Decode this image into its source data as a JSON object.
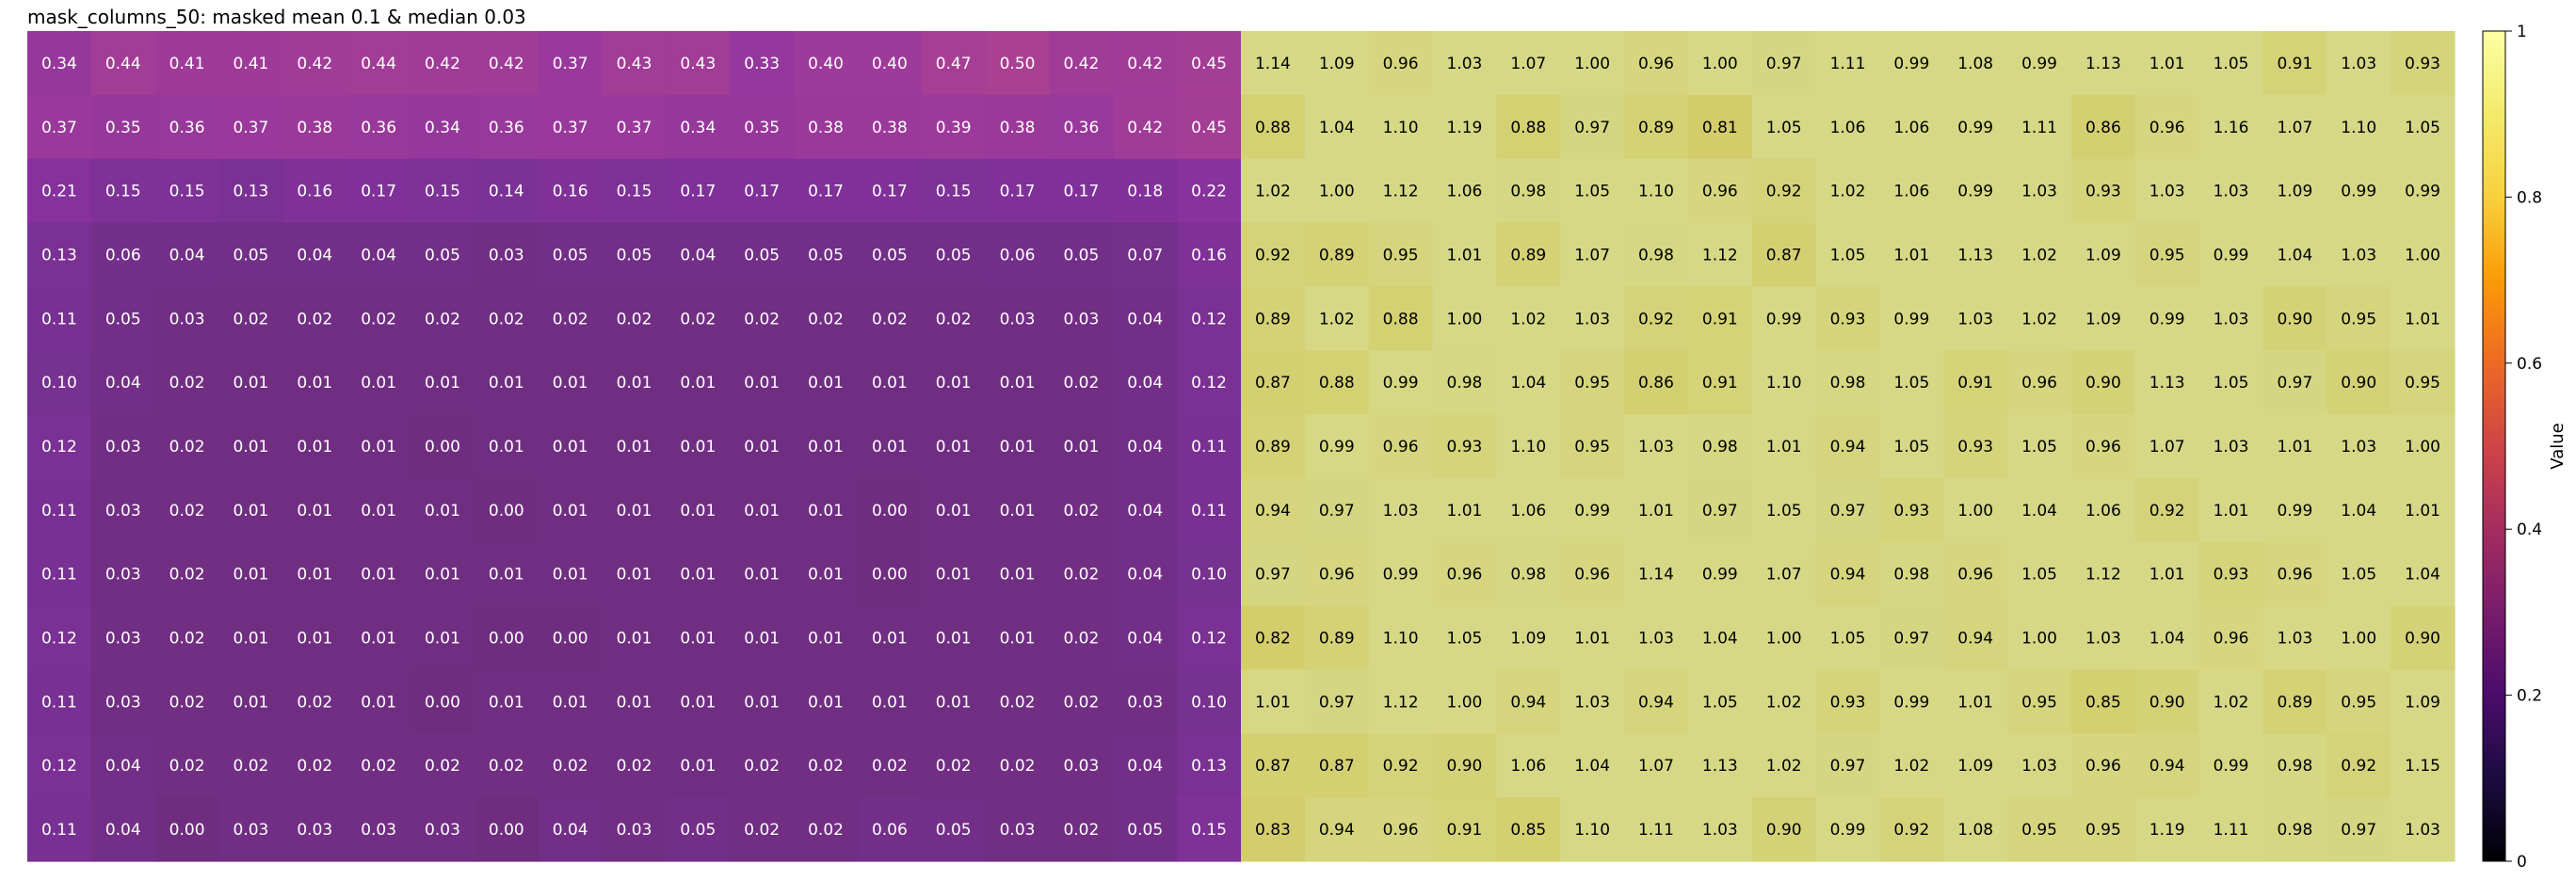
{
  "chart_data": {
    "type": "heatmap",
    "title": "mask_columns_50: masked mean 0.1 & median 0.03",
    "colormap": "inferno-like (overlay)",
    "colorbar": {
      "label": "Value",
      "range": [
        0,
        1
      ],
      "ticks": [
        "0",
        "0.2",
        "0.4",
        "0.6",
        "0.8",
        "1"
      ]
    },
    "colors": {
      "masked_column_tint": "#9b3fb0",
      "unmasked_column_tint": "#c7c97a",
      "dark_text": "#000000",
      "light_text": "#ffffff"
    },
    "masked_columns": 19,
    "rows": [
      [
        "0.34",
        "0.44",
        "0.41",
        "0.41",
        "0.42",
        "0.44",
        "0.42",
        "0.42",
        "0.37",
        "0.43",
        "0.43",
        "0.33",
        "0.40",
        "0.40",
        "0.47",
        "0.50",
        "0.42",
        "0.42",
        "0.45",
        "1.14",
        "1.09",
        "0.96",
        "1.03",
        "1.07",
        "1.00",
        "0.96",
        "1.00",
        "0.97",
        "1.11",
        "0.99",
        "1.08",
        "0.99",
        "1.13",
        "1.01",
        "1.05",
        "0.91",
        "1.03",
        "0.93"
      ],
      [
        "0.37",
        "0.35",
        "0.36",
        "0.37",
        "0.38",
        "0.36",
        "0.34",
        "0.36",
        "0.37",
        "0.37",
        "0.34",
        "0.35",
        "0.38",
        "0.38",
        "0.39",
        "0.38",
        "0.36",
        "0.42",
        "0.45",
        "0.88",
        "1.04",
        "1.10",
        "1.19",
        "0.88",
        "0.97",
        "0.89",
        "0.81",
        "1.05",
        "1.06",
        "1.06",
        "0.99",
        "1.11",
        "0.86",
        "0.96",
        "1.16",
        "1.07",
        "1.10",
        "1.05"
      ],
      [
        "0.21",
        "0.15",
        "0.15",
        "0.13",
        "0.16",
        "0.17",
        "0.15",
        "0.14",
        "0.16",
        "0.15",
        "0.17",
        "0.17",
        "0.17",
        "0.17",
        "0.15",
        "0.17",
        "0.17",
        "0.18",
        "0.22",
        "1.02",
        "1.00",
        "1.12",
        "1.06",
        "0.98",
        "1.05",
        "1.10",
        "0.96",
        "0.92",
        "1.02",
        "1.06",
        "0.99",
        "1.03",
        "0.93",
        "1.03",
        "1.03",
        "1.09",
        "0.99",
        "0.99"
      ],
      [
        "0.13",
        "0.06",
        "0.04",
        "0.05",
        "0.04",
        "0.04",
        "0.05",
        "0.03",
        "0.05",
        "0.05",
        "0.04",
        "0.05",
        "0.05",
        "0.05",
        "0.05",
        "0.06",
        "0.05",
        "0.07",
        "0.16",
        "0.92",
        "0.89",
        "0.95",
        "1.01",
        "0.89",
        "1.07",
        "0.98",
        "1.12",
        "0.87",
        "1.05",
        "1.01",
        "1.13",
        "1.02",
        "1.09",
        "0.95",
        "0.99",
        "1.04",
        "1.03",
        "1.00"
      ],
      [
        "0.11",
        "0.05",
        "0.03",
        "0.02",
        "0.02",
        "0.02",
        "0.02",
        "0.02",
        "0.02",
        "0.02",
        "0.02",
        "0.02",
        "0.02",
        "0.02",
        "0.02",
        "0.03",
        "0.03",
        "0.04",
        "0.12",
        "0.89",
        "1.02",
        "0.88",
        "1.00",
        "1.02",
        "1.03",
        "0.92",
        "0.91",
        "0.99",
        "0.93",
        "0.99",
        "1.03",
        "1.02",
        "1.09",
        "0.99",
        "1.03",
        "0.90",
        "0.95",
        "1.01"
      ],
      [
        "0.10",
        "0.04",
        "0.02",
        "0.01",
        "0.01",
        "0.01",
        "0.01",
        "0.01",
        "0.01",
        "0.01",
        "0.01",
        "0.01",
        "0.01",
        "0.01",
        "0.01",
        "0.01",
        "0.02",
        "0.04",
        "0.12",
        "0.87",
        "0.88",
        "0.99",
        "0.98",
        "1.04",
        "0.95",
        "0.86",
        "0.91",
        "1.10",
        "0.98",
        "1.05",
        "0.91",
        "0.96",
        "0.90",
        "1.13",
        "1.05",
        "0.97",
        "0.90",
        "0.95"
      ],
      [
        "0.12",
        "0.03",
        "0.02",
        "0.01",
        "0.01",
        "0.01",
        "0.00",
        "0.01",
        "0.01",
        "0.01",
        "0.01",
        "0.01",
        "0.01",
        "0.01",
        "0.01",
        "0.01",
        "0.01",
        "0.04",
        "0.11",
        "0.89",
        "0.99",
        "0.96",
        "0.93",
        "1.10",
        "0.95",
        "1.03",
        "0.98",
        "1.01",
        "0.94",
        "1.05",
        "0.93",
        "1.05",
        "0.96",
        "1.07",
        "1.03",
        "1.01",
        "1.03",
        "1.00"
      ],
      [
        "0.11",
        "0.03",
        "0.02",
        "0.01",
        "0.01",
        "0.01",
        "0.01",
        "0.00",
        "0.01",
        "0.01",
        "0.01",
        "0.01",
        "0.01",
        "0.00",
        "0.01",
        "0.01",
        "0.02",
        "0.04",
        "0.11",
        "0.94",
        "0.97",
        "1.03",
        "1.01",
        "1.06",
        "0.99",
        "1.01",
        "0.97",
        "1.05",
        "0.97",
        "0.93",
        "1.00",
        "1.04",
        "1.06",
        "0.92",
        "1.01",
        "0.99",
        "1.04",
        "1.01"
      ],
      [
        "0.11",
        "0.03",
        "0.02",
        "0.01",
        "0.01",
        "0.01",
        "0.01",
        "0.01",
        "0.01",
        "0.01",
        "0.01",
        "0.01",
        "0.01",
        "0.00",
        "0.01",
        "0.01",
        "0.02",
        "0.04",
        "0.10",
        "0.97",
        "0.96",
        "0.99",
        "0.96",
        "0.98",
        "0.96",
        "1.14",
        "0.99",
        "1.07",
        "0.94",
        "0.98",
        "0.96",
        "1.05",
        "1.12",
        "1.01",
        "0.93",
        "0.96",
        "1.05",
        "1.04"
      ],
      [
        "0.12",
        "0.03",
        "0.02",
        "0.01",
        "0.01",
        "0.01",
        "0.01",
        "0.00",
        "0.00",
        "0.01",
        "0.01",
        "0.01",
        "0.01",
        "0.01",
        "0.01",
        "0.01",
        "0.02",
        "0.04",
        "0.12",
        "0.82",
        "0.89",
        "1.10",
        "1.05",
        "1.09",
        "1.01",
        "1.03",
        "1.04",
        "1.00",
        "1.05",
        "0.97",
        "0.94",
        "1.00",
        "1.03",
        "1.04",
        "0.96",
        "1.03",
        "1.00",
        "0.90"
      ],
      [
        "0.11",
        "0.03",
        "0.02",
        "0.01",
        "0.02",
        "0.01",
        "0.00",
        "0.01",
        "0.01",
        "0.01",
        "0.01",
        "0.01",
        "0.01",
        "0.01",
        "0.01",
        "0.02",
        "0.02",
        "0.03",
        "0.10",
        "1.01",
        "0.97",
        "1.12",
        "1.00",
        "0.94",
        "1.03",
        "0.94",
        "1.05",
        "1.02",
        "0.93",
        "0.99",
        "1.01",
        "0.95",
        "0.85",
        "0.90",
        "1.02",
        "0.89",
        "0.95",
        "1.09"
      ],
      [
        "0.12",
        "0.04",
        "0.02",
        "0.02",
        "0.02",
        "0.02",
        "0.02",
        "0.02",
        "0.02",
        "0.02",
        "0.01",
        "0.02",
        "0.02",
        "0.02",
        "0.02",
        "0.02",
        "0.03",
        "0.04",
        "0.13",
        "0.87",
        "0.87",
        "0.92",
        "0.90",
        "1.06",
        "1.04",
        "1.07",
        "1.13",
        "1.02",
        "0.97",
        "1.02",
        "1.09",
        "1.03",
        "0.96",
        "0.94",
        "0.99",
        "0.98",
        "0.92",
        "1.15"
      ],
      [
        "0.11",
        "0.04",
        "0.00",
        "0.03",
        "0.03",
        "0.03",
        "0.03",
        "0.00",
        "0.04",
        "0.03",
        "0.05",
        "0.02",
        "0.02",
        "0.06",
        "0.05",
        "0.03",
        "0.02",
        "0.05",
        "0.15",
        "0.83",
        "0.94",
        "0.96",
        "0.91",
        "0.85",
        "1.10",
        "1.11",
        "1.03",
        "0.90",
        "0.99",
        "0.92",
        "1.08",
        "0.95",
        "0.95",
        "1.19",
        "1.11",
        "0.98",
        "0.97",
        "1.03"
      ]
    ]
  }
}
